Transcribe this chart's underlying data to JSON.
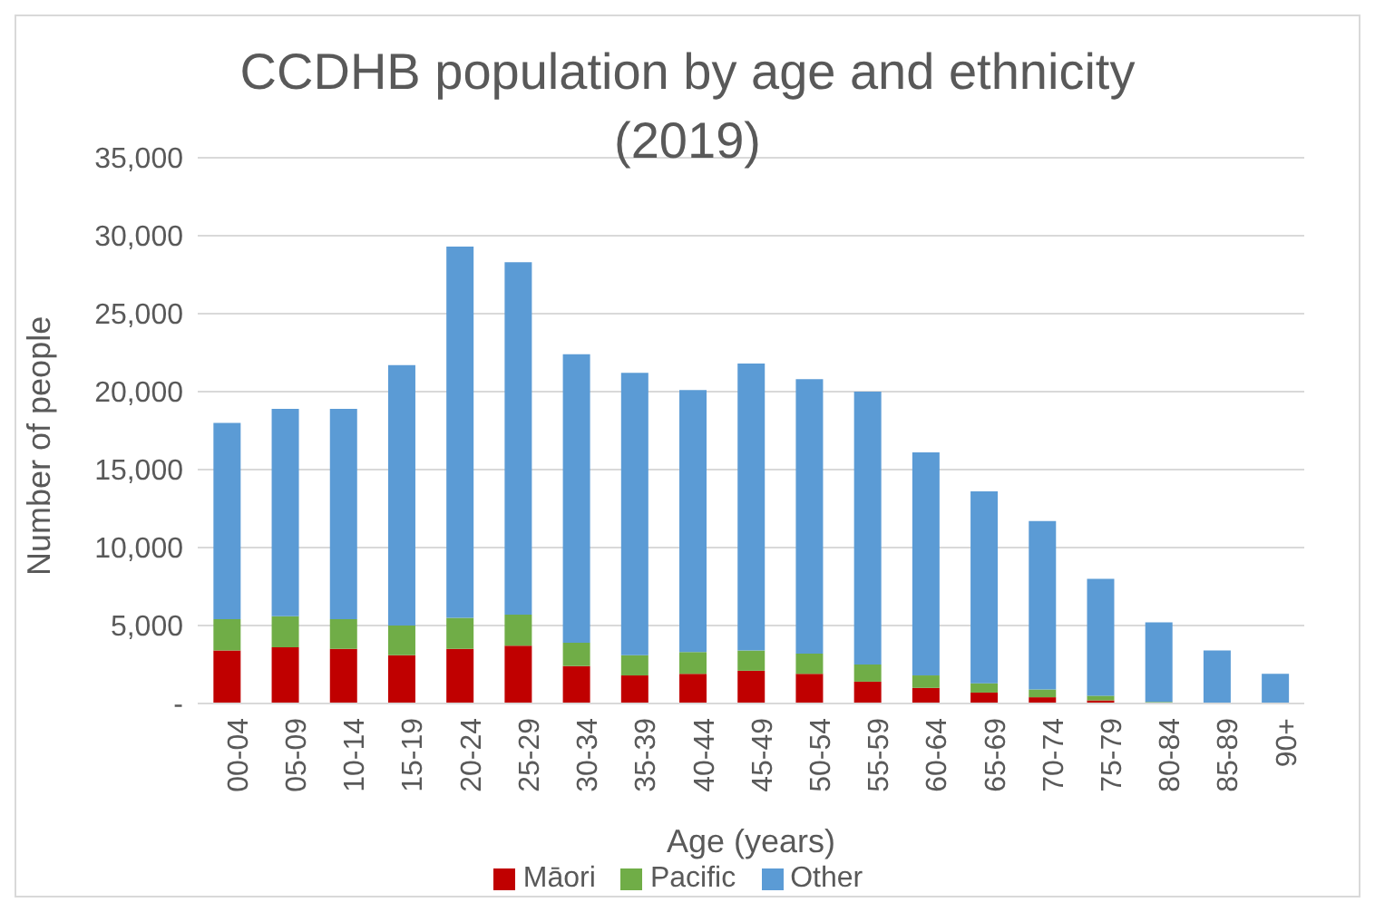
{
  "chart_data": {
    "type": "bar",
    "title": "CCDHB population by age and ethnicity (2019)",
    "xlabel": "Age (years)",
    "ylabel": "Number of people",
    "categories": [
      "00-04",
      "05-09",
      "10-14",
      "15-19",
      "20-24",
      "25-29",
      "30-34",
      "35-39",
      "40-44",
      "45-49",
      "50-54",
      "55-59",
      "60-64",
      "65-69",
      "70-74",
      "75-79",
      "80-84",
      "85-89",
      "90+"
    ],
    "series": [
      {
        "name": "Māori",
        "color": "#c00000",
        "values": [
          3400,
          3600,
          3500,
          3100,
          3500,
          3700,
          2400,
          1800,
          1900,
          2100,
          1900,
          1400,
          1000,
          700,
          400,
          200,
          null,
          null,
          null
        ]
      },
      {
        "name": "Pacific",
        "color": "#70ad47",
        "values": [
          2000,
          2000,
          1900,
          1900,
          2000,
          2000,
          1500,
          1300,
          1400,
          1300,
          1300,
          1100,
          800,
          600,
          500,
          300,
          100,
          null,
          null
        ]
      },
      {
        "name": "Other",
        "color": "#5b9bd5",
        "values": [
          12600,
          13300,
          13500,
          16700,
          23800,
          22600,
          18500,
          18100,
          16800,
          18400,
          17600,
          17500,
          14300,
          12300,
          10800,
          7500,
          5100,
          3400,
          1900
        ]
      }
    ],
    "stacked": true,
    "ylim": [
      0,
      35000
    ],
    "yticks": [
      {
        "value": 0,
        "label": "-"
      },
      {
        "value": 5000,
        "label": "5,000"
      },
      {
        "value": 10000,
        "label": "10,000"
      },
      {
        "value": 15000,
        "label": "15,000"
      },
      {
        "value": 20000,
        "label": "20,000"
      },
      {
        "value": 25000,
        "label": "25,000"
      },
      {
        "value": 30000,
        "label": "30,000"
      },
      {
        "value": 35000,
        "label": "35,000"
      }
    ],
    "grid": "y",
    "legend": "bottom"
  }
}
